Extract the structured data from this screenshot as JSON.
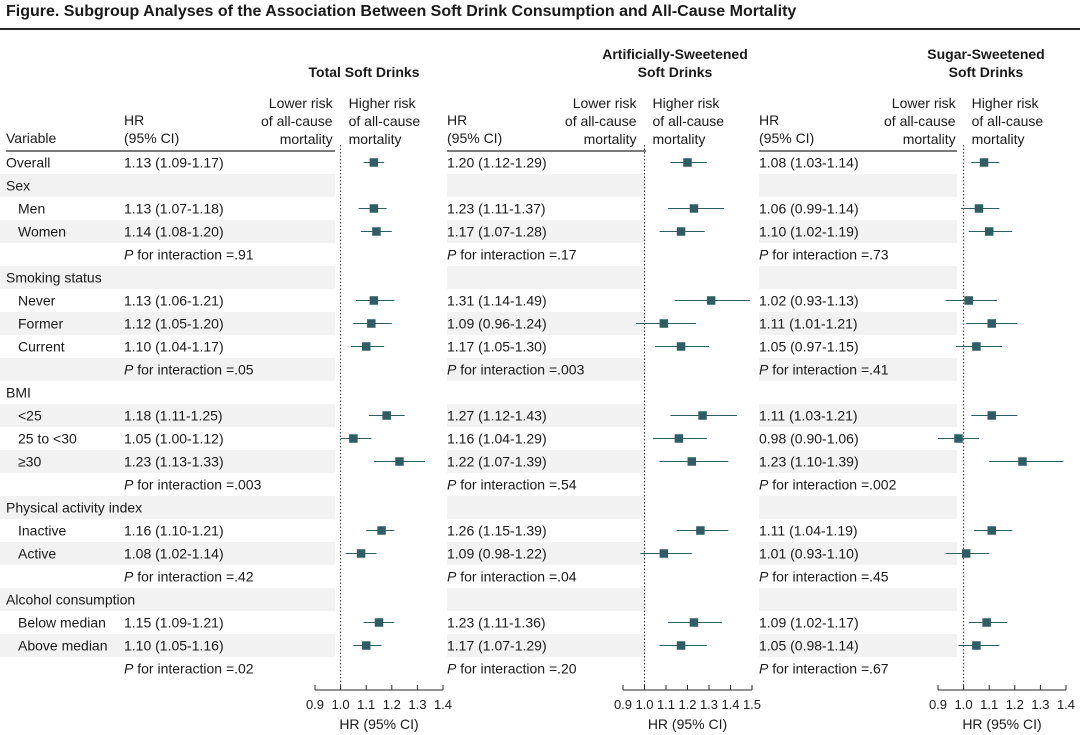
{
  "figure_title": "Figure. Subgroup Analyses of the Association Between Soft Drink Consumption and All-Cause Mortality",
  "colors": {
    "marker": "#2f5d63",
    "ci_line": "#2f5d63",
    "ref_line": "#333333",
    "row_shade": "#f2f2f2",
    "rule": "#2a2a2a"
  },
  "chart_data": {
    "type": "forest",
    "variable_header": "Variable",
    "hr_header": [
      "HR",
      "(95% CI)"
    ],
    "direction_labels": {
      "lower": [
        "Lower risk",
        "of all-cause",
        "mortality"
      ],
      "higher": [
        "Higher risk",
        "of all-cause",
        "mortality"
      ]
    },
    "xlabel": "HR (95% CI)",
    "reference_line": 1.0,
    "rows": [
      {
        "label": "Overall",
        "type": "data",
        "level": 0
      },
      {
        "label": "Sex",
        "type": "group"
      },
      {
        "label": "Men",
        "type": "data",
        "level": 1
      },
      {
        "label": "Women",
        "type": "data",
        "level": 1
      },
      {
        "label": "P for interaction",
        "type": "p"
      },
      {
        "label": "Smoking status",
        "type": "group"
      },
      {
        "label": "Never",
        "type": "data",
        "level": 1
      },
      {
        "label": "Former",
        "type": "data",
        "level": 1
      },
      {
        "label": "Current",
        "type": "data",
        "level": 1
      },
      {
        "label": "P for interaction",
        "type": "p"
      },
      {
        "label": "BMI",
        "type": "group"
      },
      {
        "label": "<25",
        "type": "data",
        "level": 1
      },
      {
        "label": "25 to <30",
        "type": "data",
        "level": 1
      },
      {
        "label": "≥30",
        "type": "data",
        "level": 1
      },
      {
        "label": "P for interaction",
        "type": "p"
      },
      {
        "label": "Physical activity index",
        "type": "group"
      },
      {
        "label": "Inactive",
        "type": "data",
        "level": 1
      },
      {
        "label": "Active",
        "type": "data",
        "level": 1
      },
      {
        "label": "P for interaction",
        "type": "p"
      },
      {
        "label": "Alcohol consumption",
        "type": "group"
      },
      {
        "label": "Below median",
        "type": "data",
        "level": 1
      },
      {
        "label": "Above median",
        "type": "data",
        "level": 1
      },
      {
        "label": "P for interaction",
        "type": "p"
      }
    ],
    "panels": [
      {
        "title": [
          "Total Soft Drinks"
        ],
        "xlim": [
          0.9,
          1.4
        ],
        "ticks": [
          0.9,
          1.0,
          1.1,
          1.2,
          1.3,
          1.4
        ],
        "tick_labels": [
          "0.9",
          "1.0",
          "1.1",
          "1.2",
          "1.3",
          "1.4"
        ],
        "values": [
          {
            "text": "1.13 (1.09-1.17)",
            "hr": 1.13,
            "lo": 1.09,
            "hi": 1.17
          },
          null,
          {
            "text": "1.13 (1.07-1.18)",
            "hr": 1.13,
            "lo": 1.07,
            "hi": 1.18
          },
          {
            "text": "1.14 (1.08-1.20)",
            "hr": 1.14,
            "lo": 1.08,
            "hi": 1.2
          },
          {
            "text": "P for interaction =.91"
          },
          null,
          {
            "text": "1.13 (1.06-1.21)",
            "hr": 1.13,
            "lo": 1.06,
            "hi": 1.21
          },
          {
            "text": "1.12 (1.05-1.20)",
            "hr": 1.12,
            "lo": 1.05,
            "hi": 1.2
          },
          {
            "text": "1.10 (1.04-1.17)",
            "hr": 1.1,
            "lo": 1.04,
            "hi": 1.17
          },
          {
            "text": "P for interaction =.05"
          },
          null,
          {
            "text": "1.18 (1.11-1.25)",
            "hr": 1.18,
            "lo": 1.11,
            "hi": 1.25
          },
          {
            "text": "1.05 (1.00-1.12)",
            "hr": 1.05,
            "lo": 1.0,
            "hi": 1.12
          },
          {
            "text": "1.23 (1.13-1.33)",
            "hr": 1.23,
            "lo": 1.13,
            "hi": 1.33
          },
          {
            "text": "P for interaction =.003"
          },
          null,
          {
            "text": "1.16 (1.10-1.21)",
            "hr": 1.16,
            "lo": 1.1,
            "hi": 1.21
          },
          {
            "text": "1.08 (1.02-1.14)",
            "hr": 1.08,
            "lo": 1.02,
            "hi": 1.14
          },
          {
            "text": "P for interaction =.42"
          },
          null,
          {
            "text": "1.15 (1.09-1.21)",
            "hr": 1.15,
            "lo": 1.09,
            "hi": 1.21
          },
          {
            "text": "1.10 (1.05-1.16)",
            "hr": 1.1,
            "lo": 1.05,
            "hi": 1.16
          },
          {
            "text": "P for interaction =.02"
          }
        ]
      },
      {
        "title": [
          "Artificially-Sweetened",
          "Soft Drinks"
        ],
        "xlim": [
          0.9,
          1.5
        ],
        "ticks": [
          0.9,
          1.0,
          1.1,
          1.2,
          1.3,
          1.4,
          1.5
        ],
        "tick_labels": [
          "0.9",
          "1.0",
          "1.1",
          "1.2",
          "1.3",
          "1.4",
          "1.5"
        ],
        "values": [
          {
            "text": "1.20 (1.12-1.29)",
            "hr": 1.2,
            "lo": 1.12,
            "hi": 1.29
          },
          null,
          {
            "text": "1.23 (1.11-1.37)",
            "hr": 1.23,
            "lo": 1.11,
            "hi": 1.37
          },
          {
            "text": "1.17 (1.07-1.28)",
            "hr": 1.17,
            "lo": 1.07,
            "hi": 1.28
          },
          {
            "text": "P for interaction =.17"
          },
          null,
          {
            "text": "1.31 (1.14-1.49)",
            "hr": 1.31,
            "lo": 1.14,
            "hi": 1.49
          },
          {
            "text": "1.09 (0.96-1.24)",
            "hr": 1.09,
            "lo": 0.96,
            "hi": 1.24
          },
          {
            "text": "1.17 (1.05-1.30)",
            "hr": 1.17,
            "lo": 1.05,
            "hi": 1.3
          },
          {
            "text": "P for interaction =.003"
          },
          null,
          {
            "text": "1.27 (1.12-1.43)",
            "hr": 1.27,
            "lo": 1.12,
            "hi": 1.43
          },
          {
            "text": "1.16 (1.04-1.29)",
            "hr": 1.16,
            "lo": 1.04,
            "hi": 1.29
          },
          {
            "text": "1.22 (1.07-1.39)",
            "hr": 1.22,
            "lo": 1.07,
            "hi": 1.39
          },
          {
            "text": "P for interaction =.54"
          },
          null,
          {
            "text": "1.26 (1.15-1.39)",
            "hr": 1.26,
            "lo": 1.15,
            "hi": 1.39
          },
          {
            "text": "1.09 (0.98-1.22)",
            "hr": 1.09,
            "lo": 0.98,
            "hi": 1.22
          },
          {
            "text": "P for interaction =.04"
          },
          null,
          {
            "text": "1.23 (1.11-1.36)",
            "hr": 1.23,
            "lo": 1.11,
            "hi": 1.36
          },
          {
            "text": "1.17 (1.07-1.29)",
            "hr": 1.17,
            "lo": 1.07,
            "hi": 1.29
          },
          {
            "text": "P for interaction =.20"
          }
        ]
      },
      {
        "title": [
          "Sugar-Sweetened",
          "Soft Drinks"
        ],
        "xlim": [
          0.9,
          1.4
        ],
        "ticks": [
          0.9,
          1.0,
          1.1,
          1.2,
          1.3,
          1.4
        ],
        "tick_labels": [
          "0.9",
          "1.0",
          "1.1",
          "1.2",
          "1.3",
          "1.4"
        ],
        "values": [
          {
            "text": "1.08 (1.03-1.14)",
            "hr": 1.08,
            "lo": 1.03,
            "hi": 1.14
          },
          null,
          {
            "text": "1.06 (0.99-1.14)",
            "hr": 1.06,
            "lo": 0.99,
            "hi": 1.14
          },
          {
            "text": "1.10 (1.02-1.19)",
            "hr": 1.1,
            "lo": 1.02,
            "hi": 1.19
          },
          {
            "text": "P for interaction =.73"
          },
          null,
          {
            "text": "1.02 (0.93-1.13)",
            "hr": 1.02,
            "lo": 0.93,
            "hi": 1.13
          },
          {
            "text": "1.11 (1.01-1.21)",
            "hr": 1.11,
            "lo": 1.01,
            "hi": 1.21
          },
          {
            "text": "1.05 (0.97-1.15)",
            "hr": 1.05,
            "lo": 0.97,
            "hi": 1.15
          },
          {
            "text": "P for interaction =.41"
          },
          null,
          {
            "text": "1.11 (1.03-1.21)",
            "hr": 1.11,
            "lo": 1.03,
            "hi": 1.21
          },
          {
            "text": "0.98 (0.90-1.06)",
            "hr": 0.98,
            "lo": 0.9,
            "hi": 1.06
          },
          {
            "text": "1.23 (1.10-1.39)",
            "hr": 1.23,
            "lo": 1.1,
            "hi": 1.39
          },
          {
            "text": "P for interaction =.002"
          },
          null,
          {
            "text": "1.11 (1.04-1.19)",
            "hr": 1.11,
            "lo": 1.04,
            "hi": 1.19
          },
          {
            "text": "1.01 (0.93-1.10)",
            "hr": 1.01,
            "lo": 0.93,
            "hi": 1.1
          },
          {
            "text": "P for interaction =.45"
          },
          null,
          {
            "text": "1.09 (1.02-1.17)",
            "hr": 1.09,
            "lo": 1.02,
            "hi": 1.17
          },
          {
            "text": "1.05 (0.98-1.14)",
            "hr": 1.05,
            "lo": 0.98,
            "hi": 1.14
          },
          {
            "text": "P for interaction =.67"
          }
        ]
      }
    ]
  }
}
